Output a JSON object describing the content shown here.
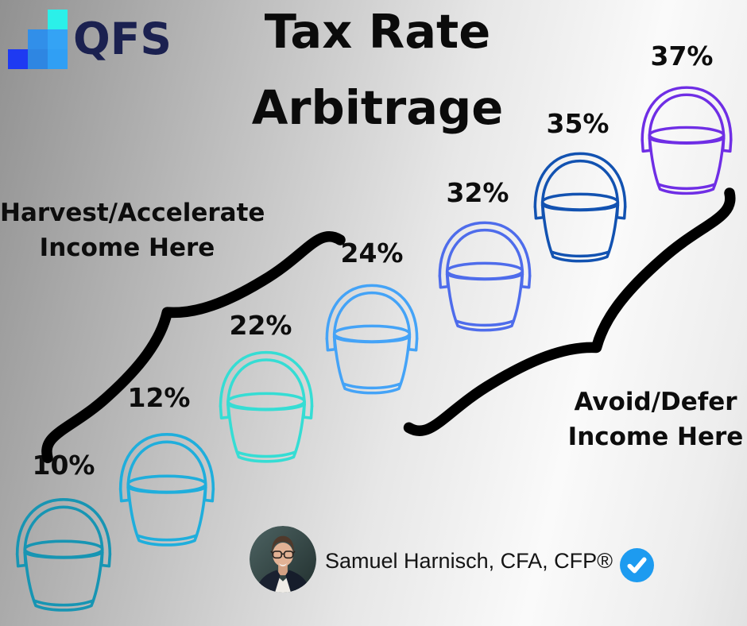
{
  "brand": {
    "name": "QFS",
    "text_color": "#1b2150",
    "logo_squares": [
      {
        "col": 2,
        "row": 0,
        "color": "#2BF0E9"
      },
      {
        "col": 1,
        "row": 1,
        "color": "#318FE9"
      },
      {
        "col": 2,
        "row": 1,
        "color": "#34A3F5"
      },
      {
        "col": 0,
        "row": 2,
        "color": "#1E3AF2"
      },
      {
        "col": 1,
        "row": 2,
        "color": "#2E86E2"
      },
      {
        "col": 2,
        "row": 2,
        "color": "#309FF4"
      }
    ]
  },
  "title": {
    "line1": "Tax Rate",
    "line2": "Arbitrage"
  },
  "buckets": [
    {
      "rate": "10%",
      "color": "#1795B3"
    },
    {
      "rate": "12%",
      "color": "#1FAEDC"
    },
    {
      "rate": "22%",
      "color": "#35DDD4"
    },
    {
      "rate": "24%",
      "color": "#44A3F7"
    },
    {
      "rate": "32%",
      "color": "#4E6CEB"
    },
    {
      "rate": "35%",
      "color": "#1252B1"
    },
    {
      "rate": "37%",
      "color": "#6F2EE5"
    }
  ],
  "annotations": {
    "harvest": {
      "line1": "Harvest/Accelerate",
      "line2": "Income Here"
    },
    "avoid": {
      "line1": "Avoid/Defer",
      "line2": "Income Here"
    }
  },
  "brace_color": "#000000",
  "credit": {
    "name": "Samuel Harnisch, CFA, CFP®",
    "badge_color": "#1D9BF0",
    "badge_icon": "checkmark"
  }
}
